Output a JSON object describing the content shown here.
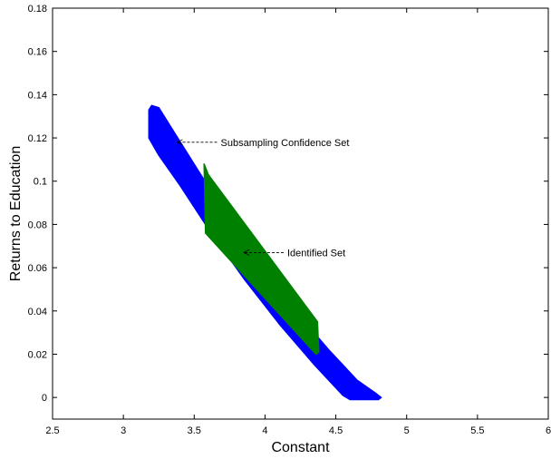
{
  "chart_data": {
    "type": "area",
    "title": "",
    "xlabel": "Constant",
    "ylabel": "Returns to Education",
    "xlim": [
      2.5,
      6
    ],
    "ylim": [
      -0.01,
      0.18
    ],
    "xticks": [
      2.5,
      3,
      3.5,
      4,
      4.5,
      5,
      5.5,
      6
    ],
    "yticks": [
      0,
      0.02,
      0.04,
      0.06,
      0.08,
      0.1,
      0.12,
      0.14,
      0.16,
      0.18
    ],
    "grid": false,
    "regions": [
      {
        "name": "Subsampling Confidence Set",
        "color": "#0000ff",
        "polygon": [
          [
            3.18,
            0.133
          ],
          [
            3.2,
            0.135
          ],
          [
            3.25,
            0.134
          ],
          [
            3.45,
            0.113
          ],
          [
            3.7,
            0.087
          ],
          [
            3.95,
            0.063
          ],
          [
            4.2,
            0.041
          ],
          [
            4.45,
            0.022
          ],
          [
            4.65,
            0.008
          ],
          [
            4.78,
            0.002
          ],
          [
            4.82,
            0.0
          ],
          [
            4.8,
            -0.001
          ],
          [
            4.6,
            -0.001
          ],
          [
            4.55,
            0.001
          ],
          [
            4.35,
            0.015
          ],
          [
            4.1,
            0.034
          ],
          [
            3.85,
            0.055
          ],
          [
            3.6,
            0.078
          ],
          [
            3.4,
            0.098
          ],
          [
            3.25,
            0.112
          ],
          [
            3.18,
            0.12
          ]
        ]
      },
      {
        "name": "Identified Set",
        "color": "#008000",
        "polygon": [
          [
            3.57,
            0.108
          ],
          [
            3.6,
            0.103
          ],
          [
            4.37,
            0.035
          ],
          [
            4.38,
            0.021
          ],
          [
            4.36,
            0.02
          ],
          [
            3.58,
            0.076
          ]
        ]
      }
    ],
    "annotations": [
      {
        "text": "Subsampling Confidence Set",
        "x": 3.38,
        "y": 0.118
      },
      {
        "text": "Identified Set",
        "x": 3.85,
        "y": 0.067
      }
    ]
  }
}
